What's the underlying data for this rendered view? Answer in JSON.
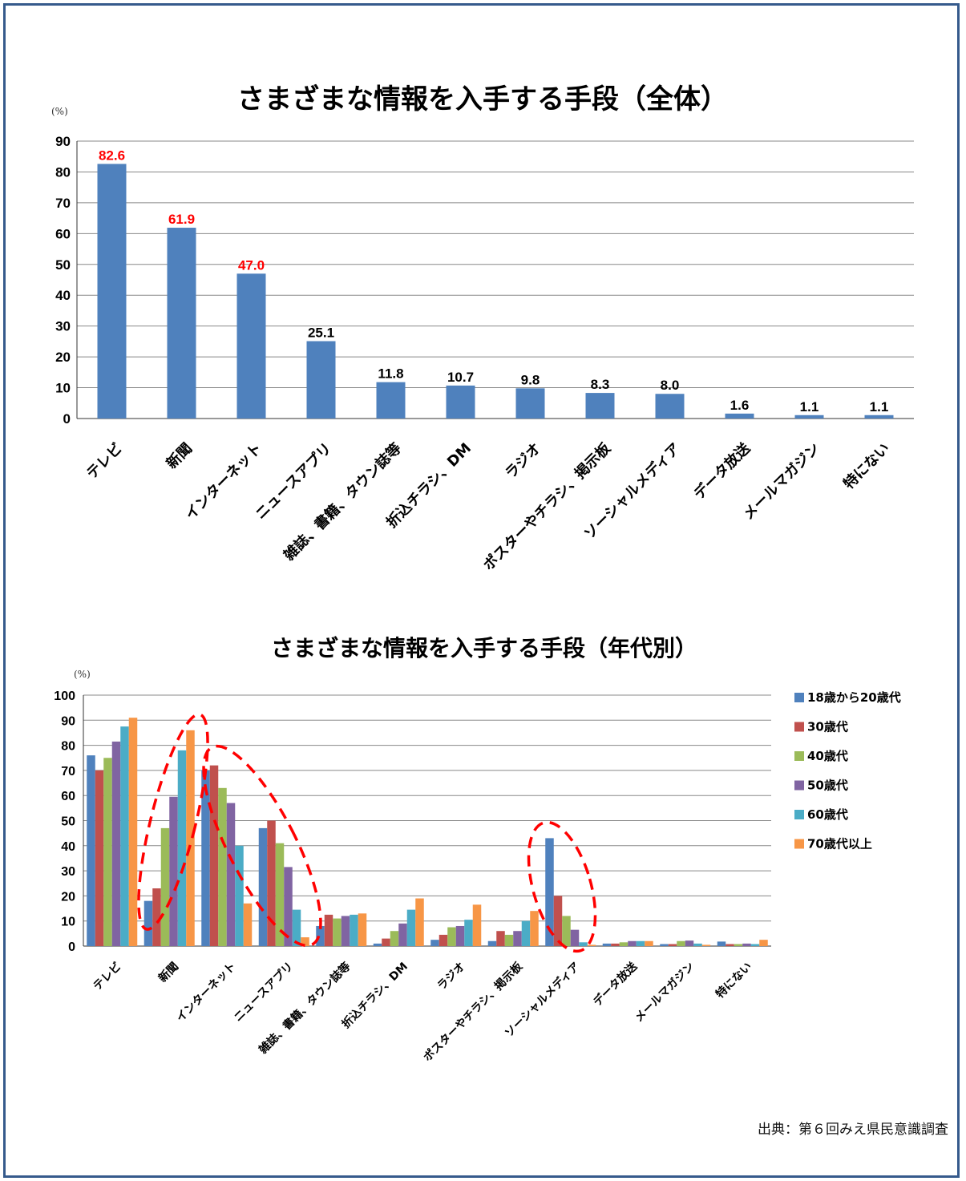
{
  "source_text": "出典：第６回みえ県民意識調査",
  "colors": {
    "frame": "#355a8c",
    "bar_overall": "#4f81bd",
    "highlight_label": "#ff0000",
    "ellipse": "#ff0000"
  },
  "chart_data": [
    {
      "type": "bar",
      "title": "さまざまな情報を入手する手段（全体）",
      "ylabel": "(%)",
      "ylim": [
        0,
        90
      ],
      "yticks": [
        0,
        10,
        20,
        30,
        40,
        50,
        60,
        70,
        80,
        90
      ],
      "grid": true,
      "categories": [
        "テレビ",
        "新聞",
        "インターネット",
        "ニュースアプリ",
        "雑誌、書籍、タウン誌等",
        "折込チラシ、DM",
        "ラジオ",
        "ポスターやチラシ、掲示板",
        "ソーシャルメディア",
        "データ放送",
        "メールマガジン",
        "特にない"
      ],
      "values": [
        82.6,
        61.9,
        47.0,
        25.1,
        11.8,
        10.7,
        9.8,
        8.3,
        8.0,
        1.6,
        1.1,
        1.1
      ],
      "value_labels": [
        "82.6",
        "61.9",
        "47.0",
        "25.1",
        "11.8",
        "10.7",
        "9.8",
        "8.3",
        "8.0",
        "1.6",
        "1.1",
        "1.1"
      ],
      "highlighted_labels": [
        0,
        1,
        2
      ]
    },
    {
      "type": "bar",
      "title": "さまざまな情報を入手する手段（年代別）",
      "ylabel": "(%)",
      "ylim": [
        0,
        100
      ],
      "yticks": [
        0,
        10,
        20,
        30,
        40,
        50,
        60,
        70,
        80,
        90,
        100
      ],
      "grid": true,
      "legend_position": "right",
      "categories": [
        "テレビ",
        "新聞",
        "インターネット",
        "ニュースアプリ",
        "雑誌、書籍、タウン誌等",
        "折込チラシ、DM",
        "ラジオ",
        "ポスターやチラシ、掲示板",
        "ソーシャルメディア",
        "データ放送",
        "メールマガジン",
        "特にない"
      ],
      "series": [
        {
          "name": "18歳から20歳代",
          "color": "#4f81bd",
          "values": [
            76,
            18,
            70,
            47,
            8,
            1,
            2.5,
            2,
            43,
            1,
            0.8,
            1.8
          ]
        },
        {
          "name": "30歳代",
          "color": "#c0504d",
          "values": [
            70,
            23,
            72,
            50,
            12.5,
            3,
            4.5,
            6,
            20,
            1,
            0.8,
            0.8
          ]
        },
        {
          "name": "40歳代",
          "color": "#9bbb59",
          "values": [
            75,
            47,
            63,
            41,
            11,
            6,
            7.5,
            4.5,
            12,
            1.5,
            2,
            0.8
          ]
        },
        {
          "name": "50歳代",
          "color": "#8064a2",
          "values": [
            81.5,
            59.5,
            57,
            31.5,
            12,
            9,
            8,
            6,
            6.5,
            2,
            2.2,
            1
          ]
        },
        {
          "name": "60歳代",
          "color": "#4bacc6",
          "values": [
            87.5,
            78,
            40,
            14.5,
            12.5,
            14.5,
            10.5,
            10,
            1.5,
            2,
            1,
            0.8
          ]
        },
        {
          "name": "70歳代以上",
          "color": "#f79646",
          "values": [
            91,
            86,
            17,
            3.5,
            13,
            19,
            16.5,
            14,
            0.5,
            2,
            0.5,
            2.5
          ]
        }
      ],
      "annotations": [
        "dashed red ellipse around 新聞",
        "dashed red ellipse around インターネット and ニュースアプリ",
        "dashed red ellipse around ソーシャルメディア"
      ]
    }
  ]
}
